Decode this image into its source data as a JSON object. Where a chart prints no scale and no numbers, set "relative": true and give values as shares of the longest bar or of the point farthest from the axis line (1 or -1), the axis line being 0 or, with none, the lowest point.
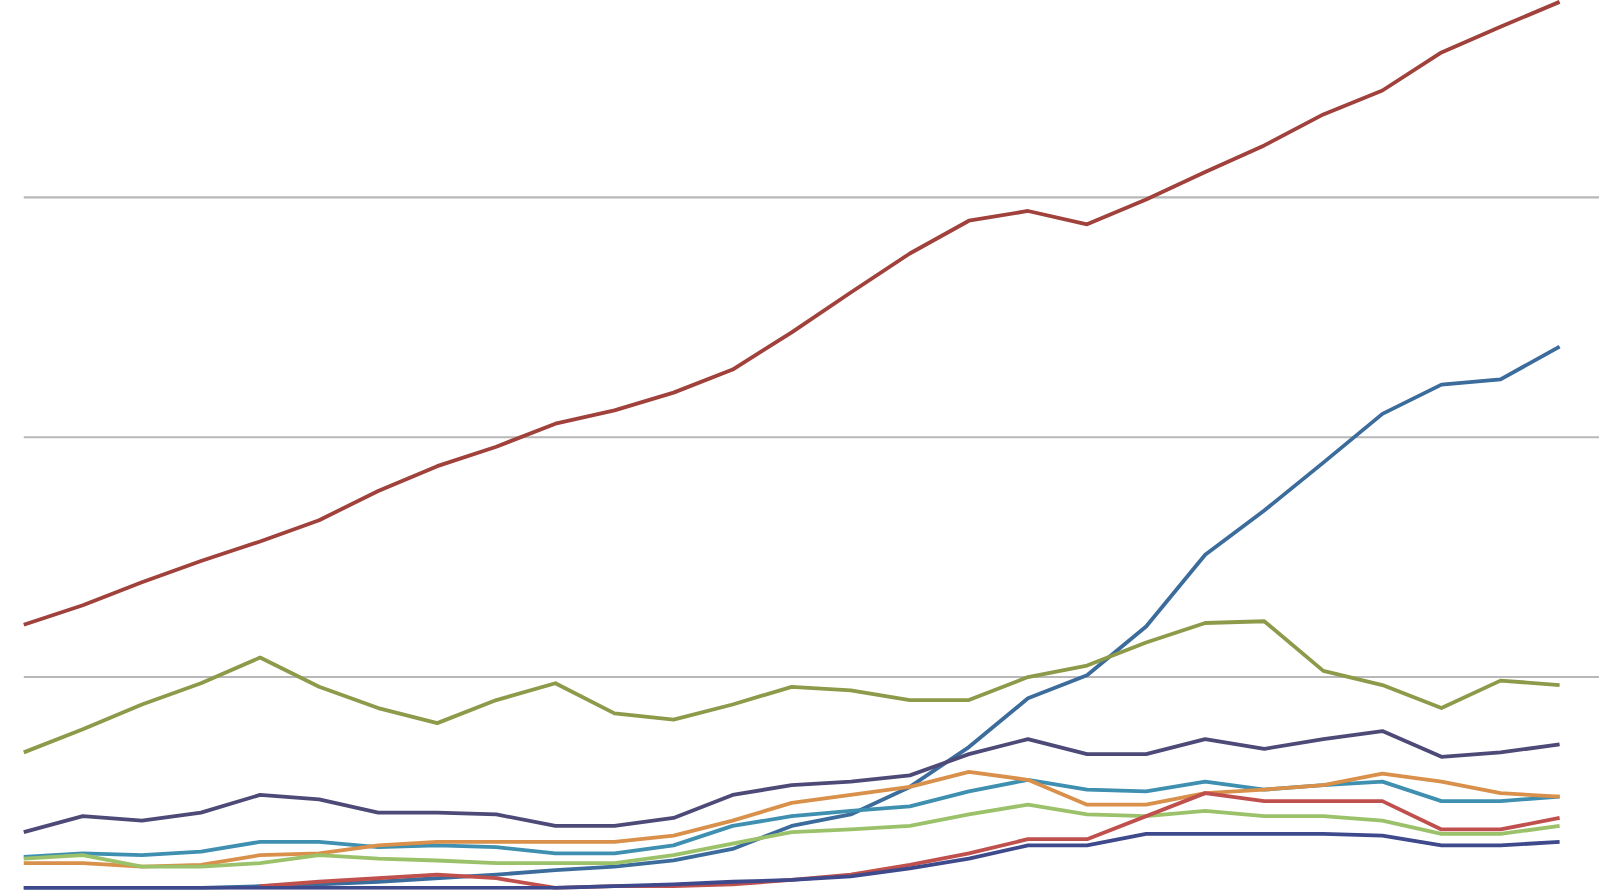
{
  "chart_data": {
    "type": "line",
    "relative": true,
    "grid": "y",
    "categories": [
      null,
      null,
      null,
      null,
      null,
      null,
      null,
      null,
      null,
      null,
      null,
      null,
      null,
      null,
      null,
      null,
      null,
      null,
      null,
      null,
      null,
      null,
      null,
      null,
      null,
      null,
      null
    ],
    "series": [
      {
        "color": "#a0413c",
        "values": [
          0.297,
          0.319,
          0.345,
          0.369,
          0.391,
          0.415,
          0.448,
          0.476,
          0.498,
          0.524,
          0.539,
          0.559,
          0.585,
          0.627,
          0.672,
          0.716,
          0.753,
          0.764,
          0.749,
          0.777,
          0.808,
          0.838,
          0.873,
          0.9,
          0.943,
          0.972,
          1
        ]
      },
      {
        "color": "#3b6c9c",
        "values": [
          0,
          0,
          0,
          0,
          0.002,
          0.004,
          0.007,
          0.011,
          0.015,
          0.02,
          0.024,
          0.031,
          0.044,
          0.07,
          0.083,
          0.114,
          0.159,
          0.214,
          0.24,
          0.295,
          0.376,
          0.426,
          0.48,
          0.535,
          0.568,
          0.574,
          0.611
        ]
      },
      {
        "color": "#8c9a4a",
        "values": [
          0.153,
          0.179,
          0.207,
          0.231,
          0.26,
          0.227,
          0.203,
          0.186,
          0.212,
          0.231,
          0.197,
          0.19,
          0.207,
          0.227,
          0.223,
          0.212,
          0.212,
          0.238,
          0.251,
          0.277,
          0.299,
          0.301,
          0.245,
          0.229,
          0.203,
          0.234,
          0.229
        ]
      },
      {
        "color": "#4e4a78",
        "values": [
          0.063,
          0.081,
          0.076,
          0.085,
          0.105,
          0.1,
          0.085,
          0.085,
          0.083,
          0.07,
          0.07,
          0.079,
          0.105,
          0.116,
          0.12,
          0.127,
          0.151,
          0.168,
          0.151,
          0.151,
          0.168,
          0.157,
          0.168,
          0.177,
          0.148,
          0.153,
          0.162
        ]
      },
      {
        "color": "#3e8fb0",
        "values": [
          0.035,
          0.039,
          0.037,
          0.041,
          0.052,
          0.052,
          0.046,
          0.048,
          0.046,
          0.039,
          0.039,
          0.048,
          0.07,
          0.081,
          0.087,
          0.092,
          0.109,
          0.122,
          0.111,
          0.109,
          0.12,
          0.111,
          0.116,
          0.12,
          0.098,
          0.098,
          0.103
        ]
      },
      {
        "color": "#d9904a",
        "values": [
          0.028,
          0.028,
          0.024,
          0.026,
          0.037,
          0.039,
          0.048,
          0.052,
          0.052,
          0.052,
          0.052,
          0.059,
          0.076,
          0.096,
          0.105,
          0.114,
          0.131,
          0.122,
          0.094,
          0.094,
          0.107,
          0.111,
          0.116,
          0.129,
          0.12,
          0.107,
          0.103
        ]
      },
      {
        "color": "#9bc26a",
        "values": [
          0.033,
          0.037,
          0.024,
          0.024,
          0.028,
          0.037,
          0.033,
          0.031,
          0.028,
          0.028,
          0.028,
          0.037,
          0.05,
          0.063,
          0.066,
          0.07,
          0.083,
          0.094,
          0.083,
          0.081,
          0.087,
          0.081,
          0.081,
          0.076,
          0.061,
          0.061,
          0.07
        ]
      },
      {
        "color": "#c0504d",
        "values": [
          null,
          null,
          null,
          null,
          0.002,
          0.007,
          0.011,
          0.015,
          0.011,
          0,
          0.002,
          0.002,
          0.004,
          0.009,
          0.015,
          0.026,
          0.039,
          0.055,
          0.055,
          0.081,
          0.107,
          0.098,
          0.098,
          0.098,
          0.066,
          0.066,
          0.079
        ]
      },
      {
        "color": "#3e4a8c",
        "values": [
          0,
          0,
          0,
          0,
          0,
          0,
          0,
          0,
          0,
          0,
          0.002,
          0.004,
          0.007,
          0.009,
          0.013,
          0.022,
          0.033,
          0.048,
          0.048,
          0.061,
          0.061,
          0.061,
          0.061,
          0.059,
          0.048,
          0.048,
          0.052
        ]
      }
    ]
  }
}
